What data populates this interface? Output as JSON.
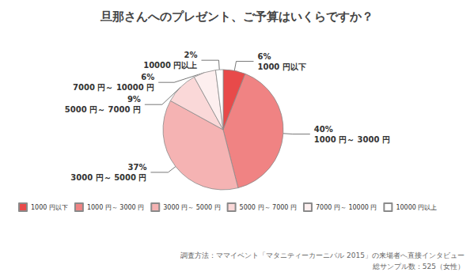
{
  "chart_data": {
    "type": "pie",
    "title": "旦那さんへのプレゼント、ご予算はいくらですか？",
    "categories": [
      "1000 円以下",
      "1000 円～ 3000 円",
      "3000 円～ 5000 円",
      "5000 円～ 7000 円",
      "7000 円～ 10000 円",
      "10000 円以上"
    ],
    "values": [
      6,
      40,
      37,
      9,
      6,
      2
    ],
    "value_labels": [
      "6%",
      "40%",
      "37%",
      "9%",
      "6%",
      "2%"
    ],
    "colors": [
      "#e84a4a",
      "#f08383",
      "#f5b3b3",
      "#fad8d8",
      "#fdefef",
      "#ffffff"
    ],
    "data_labels": true,
    "legend": "bottom",
    "annotations": [
      "調査方法：ママイベント「マタニティーカーニバル 2015」の来場者へ直接インタビュー",
      "総サンプル数：525（女性）"
    ]
  }
}
